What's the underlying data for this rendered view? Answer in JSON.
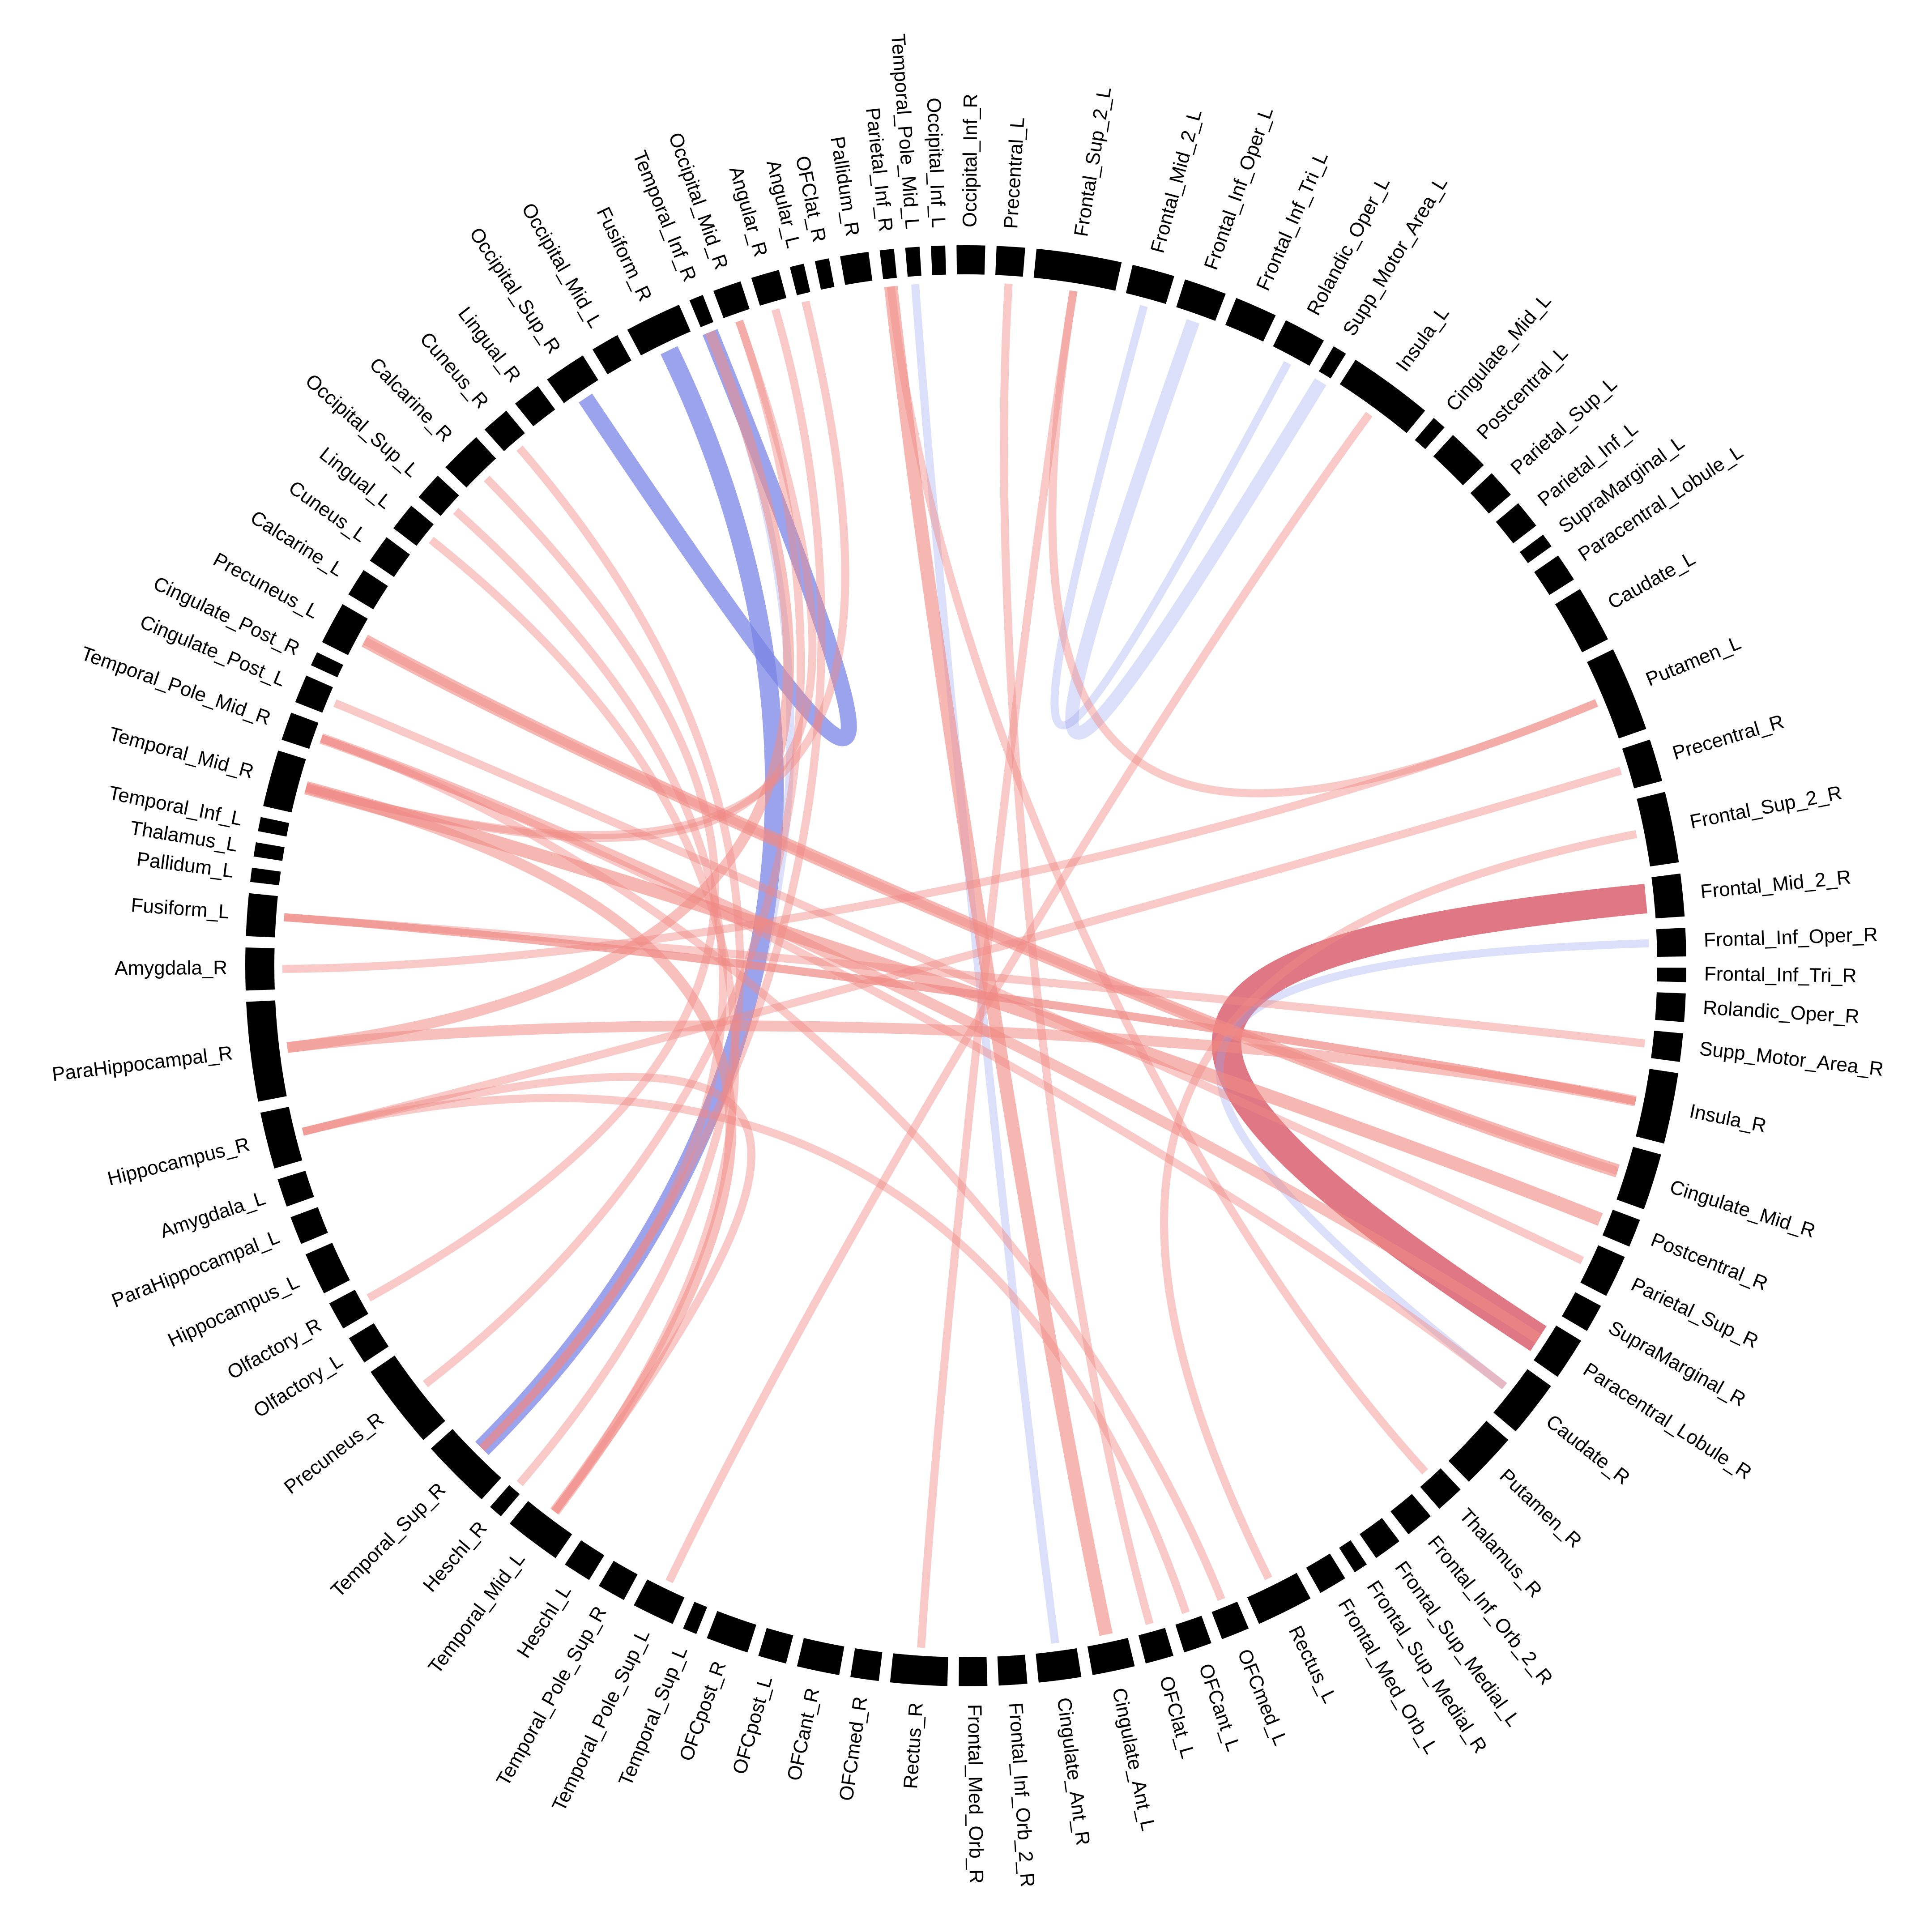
{
  "chart_data": {
    "type": "chord",
    "nodes": [
      {
        "name": "Precentral_L",
        "size": 2
      },
      {
        "name": "Frontal_Sup_2_L",
        "size": 6
      },
      {
        "name": "Frontal_Mid_2_L",
        "size": 3
      },
      {
        "name": "Frontal_Inf_Oper_L",
        "size": 3
      },
      {
        "name": "Frontal_Inf_Tri_L",
        "size": 3
      },
      {
        "name": "Rolandic_Oper_L",
        "size": 3
      },
      {
        "name": "Supp_Motor_Area_L",
        "size": 1
      },
      {
        "name": "Insula_L",
        "size": 6
      },
      {
        "name": "Cingulate_Mid_L",
        "size": 1
      },
      {
        "name": "Postcentral_L",
        "size": 3
      },
      {
        "name": "Parietal_Sup_L",
        "size": 2
      },
      {
        "name": "Parietal_Inf_L",
        "size": 2
      },
      {
        "name": "SupraMarginal_L",
        "size": 1
      },
      {
        "name": "Paracentral_Lobule_L",
        "size": 2
      },
      {
        "name": "Caudate_L",
        "size": 4
      },
      {
        "name": "Putamen_L",
        "size": 6
      },
      {
        "name": "Precentral_R",
        "size": 3
      },
      {
        "name": "Frontal_Sup_2_R",
        "size": 5
      },
      {
        "name": "Frontal_Mid_2_R",
        "size": 3
      },
      {
        "name": "Frontal_Inf_Oper_R",
        "size": 2
      },
      {
        "name": "Frontal_Inf_Tri_R",
        "size": 1
      },
      {
        "name": "Rolandic_Oper_R",
        "size": 2
      },
      {
        "name": "Supp_Motor_Area_R",
        "size": 2
      },
      {
        "name": "Insula_R",
        "size": 5
      },
      {
        "name": "Cingulate_Mid_R",
        "size": 4
      },
      {
        "name": "Postcentral_R",
        "size": 2
      },
      {
        "name": "Parietal_Sup_R",
        "size": 3
      },
      {
        "name": "SupraMarginal_R",
        "size": 2
      },
      {
        "name": "Paracentral_Lobule_R",
        "size": 3
      },
      {
        "name": "Caudate_R",
        "size": 4
      },
      {
        "name": "Putamen_R",
        "size": 4
      },
      {
        "name": "Thalamus_R",
        "size": 2
      },
      {
        "name": "Frontal_Inf_Orb_2_R",
        "size": 2
      },
      {
        "name": "Frontal_Sup_Medial_L",
        "size": 2
      },
      {
        "name": "Frontal_Sup_Medial_R",
        "size": 1
      },
      {
        "name": "Frontal_Med_Orb_L",
        "size": 2
      },
      {
        "name": "Rectus_L",
        "size": 4
      },
      {
        "name": "OFCmed_L",
        "size": 2
      },
      {
        "name": "OFCant_L",
        "size": 2
      },
      {
        "name": "OFClat_L",
        "size": 2
      },
      {
        "name": "Cingulate_Ant_L",
        "size": 3
      },
      {
        "name": "Cingulate_Ant_R",
        "size": 3
      },
      {
        "name": "Frontal_Inf_Orb_2_R",
        "size": 2
      },
      {
        "name": "Frontal_Med_Orb_R",
        "size": 2
      },
      {
        "name": "Rectus_R",
        "size": 4
      },
      {
        "name": "OFCmed_R",
        "size": 2
      },
      {
        "name": "OFCant_R",
        "size": 3
      },
      {
        "name": "OFCpost_L",
        "size": 2
      },
      {
        "name": "OFCpost_R",
        "size": 3
      },
      {
        "name": "Temporal_Sup_L",
        "size": 1
      },
      {
        "name": "Temporal_Pole_Sup_L",
        "size": 3
      },
      {
        "name": "Temporal_Pole_Sup_R",
        "size": 2
      },
      {
        "name": "Heschl_L",
        "size": 2
      },
      {
        "name": "Temporal_Mid_L",
        "size": 4
      },
      {
        "name": "Heschl_R",
        "size": 1
      },
      {
        "name": "Temporal_Sup_R",
        "size": 5
      },
      {
        "name": "Precuneus_R",
        "size": 6
      },
      {
        "name": "Olfactory_L",
        "size": 2
      },
      {
        "name": "Olfactory_R",
        "size": 2
      },
      {
        "name": "Hippocampus_L",
        "size": 3
      },
      {
        "name": "ParaHippocampal_L",
        "size": 2
      },
      {
        "name": "Amygdala_L",
        "size": 2
      },
      {
        "name": "Hippocampus_R",
        "size": 4
      },
      {
        "name": "ParaHippocampal_R",
        "size": 7
      },
      {
        "name": "Amygdala_R",
        "size": 3
      },
      {
        "name": "Fusiform_L",
        "size": 3
      },
      {
        "name": "Pallidum_L",
        "size": 1
      },
      {
        "name": "Thalamus_L",
        "size": 1
      },
      {
        "name": "Temporal_Inf_L",
        "size": 1
      },
      {
        "name": "Temporal_Mid_R",
        "size": 4
      },
      {
        "name": "Temporal_Pole_Mid_R",
        "size": 2
      },
      {
        "name": "Cingulate_Post_L",
        "size": 2
      },
      {
        "name": "Cingulate_Post_R",
        "size": 1
      },
      {
        "name": "Precuneus_L",
        "size": 3
      },
      {
        "name": "Calcarine_L",
        "size": 2
      },
      {
        "name": "Cuneus_L",
        "size": 2
      },
      {
        "name": "Lingual_L",
        "size": 2
      },
      {
        "name": "Occipital_Sup_L",
        "size": 2
      },
      {
        "name": "Calcarine_R",
        "size": 3
      },
      {
        "name": "Cuneus_R",
        "size": 2
      },
      {
        "name": "Lingual_R",
        "size": 2
      },
      {
        "name": "Occipital_Sup_R",
        "size": 3
      },
      {
        "name": "Occipital_Mid_L",
        "size": 2
      },
      {
        "name": "Fusiform_R",
        "size": 4
      },
      {
        "name": "Temporal_Inf_R",
        "size": 1
      },
      {
        "name": "Occipital_Mid_R",
        "size": 2
      },
      {
        "name": "Angular_R",
        "size": 2
      },
      {
        "name": "Angular_L",
        "size": 1
      },
      {
        "name": "OFClat_R",
        "size": 1
      },
      {
        "name": "Pallidum_R",
        "size": 2
      },
      {
        "name": "Parietal_Inf_R",
        "size": 1
      },
      {
        "name": "Temporal_Pole_Mid_L",
        "size": 1
      },
      {
        "name": "Occipital_Inf_L",
        "size": 1
      },
      {
        "name": "Occipital_Inf_R",
        "size": 2
      }
    ],
    "links": [
      {
        "source": "Frontal_Mid_2_R",
        "target": "Paracentral_Lobule_R",
        "weight": 10,
        "sign": "positive"
      },
      {
        "source": "Frontal_Inf_Oper_R",
        "target": "Caudate_R",
        "weight": 2,
        "sign": "negative"
      },
      {
        "source": "Fusiform_R",
        "target": "Temporal_Sup_R",
        "weight": 6,
        "sign": "negative"
      },
      {
        "source": "Occipital_Sup_R",
        "target": "Temporal_Inf_R",
        "weight": 5,
        "sign": "negative"
      },
      {
        "source": "Temporal_Inf_R",
        "target": "Temporal_Sup_R",
        "weight": 2,
        "sign": "negative"
      },
      {
        "source": "Frontal_Mid_2_L",
        "target": "Rolandic_Oper_L",
        "weight": 2,
        "sign": "negative"
      },
      {
        "source": "Frontal_Inf_Oper_L",
        "target": "Supp_Motor_Area_L",
        "weight": 4,
        "sign": "negative"
      },
      {
        "source": "Cingulate_Ant_R",
        "target": "Temporal_Pole_Mid_L",
        "weight": 2,
        "sign": "negative"
      },
      {
        "source": "Temporal_Mid_R",
        "target": "Postcentral_R",
        "weight": 4,
        "sign": "positive"
      },
      {
        "source": "Temporal_Mid_R",
        "target": "Temporal_Mid_L",
        "weight": 3,
        "sign": "positive"
      },
      {
        "source": "Temporal_Mid_R",
        "target": "Occipital_Mid_R",
        "weight": 2,
        "sign": "positive"
      },
      {
        "source": "Temporal_Mid_R",
        "target": "Angular_L",
        "weight": 2,
        "sign": "positive"
      },
      {
        "source": "Precuneus_L",
        "target": "Cingulate_Mid_R",
        "weight": 4,
        "sign": "positive"
      },
      {
        "source": "Cingulate_Post_L",
        "target": "Parietal_Sup_R",
        "weight": 2,
        "sign": "positive"
      },
      {
        "source": "Temporal_Pole_Mid_R",
        "target": "Paracentral_Lobule_R",
        "weight": 3,
        "sign": "positive"
      },
      {
        "source": "Fusiform_L",
        "target": "Insula_R",
        "weight": 2,
        "sign": "positive"
      },
      {
        "source": "Fusiform_L",
        "target": "Supp_Motor_Area_R",
        "weight": 2,
        "sign": "positive"
      },
      {
        "source": "Amygdala_R",
        "target": "Putamen_L",
        "weight": 2,
        "sign": "positive"
      },
      {
        "source": "ParaHippocampal_R",
        "target": "Temporal_Inf_R",
        "weight": 3,
        "sign": "positive"
      },
      {
        "source": "ParaHippocampal_R",
        "target": "Insula_R",
        "weight": 3,
        "sign": "positive"
      },
      {
        "source": "Hippocampus_R",
        "target": "Temporal_Mid_L",
        "weight": 2,
        "sign": "positive"
      },
      {
        "source": "Hippocampus_R",
        "target": "OFCant_L",
        "weight": 2,
        "sign": "positive"
      },
      {
        "source": "Hippocampus_R",
        "target": "Precentral_R",
        "weight": 2,
        "sign": "positive"
      },
      {
        "source": "Olfactory_R",
        "target": "Calcarine_R",
        "weight": 2,
        "sign": "positive"
      },
      {
        "source": "Precuneus_R",
        "target": "Occipital_Mid_R",
        "weight": 2,
        "sign": "positive"
      },
      {
        "source": "Temporal_Sup_R",
        "target": "Angular_R",
        "weight": 2,
        "sign": "positive"
      },
      {
        "source": "Temporal_Sup_R",
        "target": "Occipital_Sup_L",
        "weight": 2,
        "sign": "positive"
      },
      {
        "source": "Heschl_R",
        "target": "Cuneus_R",
        "weight": 2,
        "sign": "positive"
      },
      {
        "source": "Temporal_Mid_L",
        "target": "Lingual_L",
        "weight": 2,
        "sign": "positive"
      },
      {
        "source": "Rectus_R",
        "target": "Frontal_Sup_2_L",
        "weight": 2,
        "sign": "positive"
      },
      {
        "source": "Cingulate_Ant_L",
        "target": "Parietal_Inf_R",
        "weight": 4,
        "sign": "positive"
      },
      {
        "source": "OFClat_L",
        "target": "Precentral_L",
        "weight": 2,
        "sign": "positive"
      },
      {
        "source": "OFCmed_L",
        "target": "Temporal_Pole_Mid_R",
        "weight": 2,
        "sign": "positive"
      },
      {
        "source": "Rectus_L",
        "target": "Frontal_Sup_2_R",
        "weight": 2,
        "sign": "positive"
      },
      {
        "source": "Thalamus_R",
        "target": "Parietal_Inf_R",
        "weight": 2,
        "sign": "positive"
      },
      {
        "source": "Frontal_Sup_2_L",
        "target": "Putamen_L",
        "weight": 2,
        "sign": "positive"
      },
      {
        "source": "Insula_L",
        "target": "Temporal_Pole_Sup_L",
        "weight": 2,
        "sign": "positive"
      },
      {
        "source": "Caudate_R",
        "target": "Temporal_Pole_Mid_R",
        "weight": 2,
        "sign": "positive"
      },
      {
        "source": "Cingulate_Mid_R",
        "target": "Precuneus_L",
        "weight": 2,
        "sign": "positive"
      },
      {
        "source": "Insula_R",
        "target": "Fusiform_L",
        "weight": 2,
        "sign": "positive"
      }
    ]
  }
}
